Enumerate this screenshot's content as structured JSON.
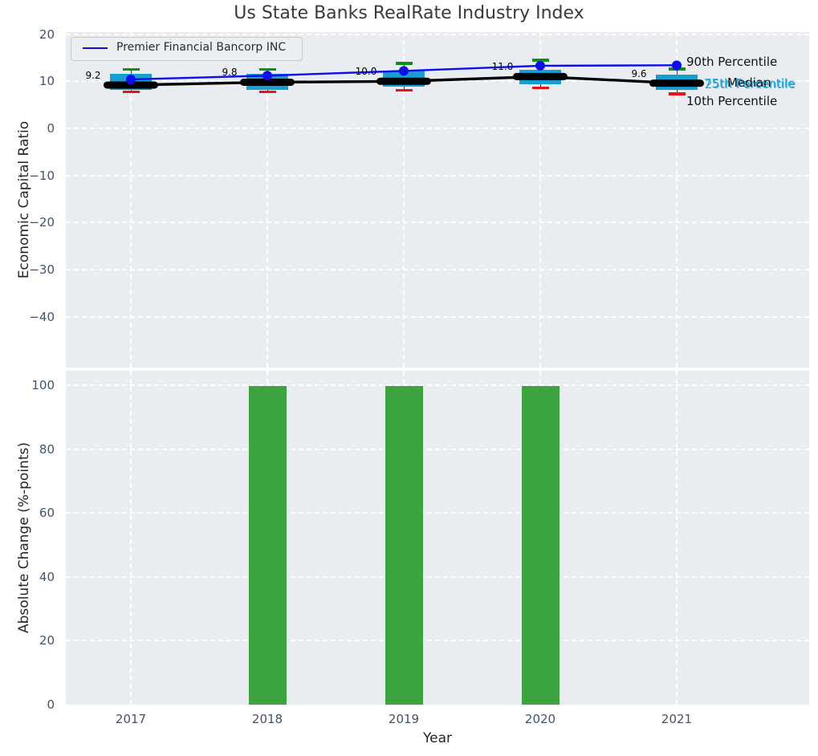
{
  "figure": {
    "title": "Us State Banks RealRate Industry Index"
  },
  "legend": {
    "series_label": "Premier Financial Bancorp INC"
  },
  "side_labels": {
    "p90": "90th Percentile",
    "p75": "75th Percentile",
    "median": "Median",
    "p25": "25th Percentile",
    "p10": "10th Percentile"
  },
  "colors": {
    "panel_bg": "#e9edf1",
    "grid": "#ffffff",
    "box_fill": "#179fd2",
    "percentile_label": "#2ba6d8",
    "p90_cap": "#0a960a",
    "p10_cap": "#ee1111",
    "company_line": "#0d0dee",
    "median_line": "#000000",
    "bar_fill": "#3ba43e",
    "tick_label": "#42536a",
    "title": "#3a3a3a"
  },
  "chart_data": [
    {
      "type": "boxplot+line",
      "panel": "top",
      "title": "Us State Banks RealRate Industry Index",
      "ylabel": "Economic Capital Ratio",
      "categories": [
        "2017",
        "2018",
        "2019",
        "2020",
        "2021"
      ],
      "yticks": [
        20,
        10,
        0,
        -10,
        -20,
        -30,
        -40
      ],
      "ylim": [
        -52,
        20.5
      ],
      "grid": true,
      "legend_position": "upper-left",
      "company_series": {
        "name": "Premier Financial Bancorp INC",
        "values": [
          10.4,
          11.2,
          12.2,
          13.3,
          13.4
        ]
      },
      "median": {
        "values": [
          9.2,
          9.8,
          10.0,
          11.0,
          9.6
        ],
        "annotations": [
          "9.2",
          "9.8",
          "10.0",
          "11.0",
          "9.6"
        ]
      },
      "p90": [
        12.5,
        12.5,
        13.8,
        14.5,
        12.6
      ],
      "p75": [
        11.5,
        11.6,
        12.2,
        12.5,
        11.4
      ],
      "p25": [
        8.1,
        8.1,
        8.8,
        9.4,
        8.2
      ],
      "p10": [
        7.8,
        7.8,
        8.1,
        8.6,
        7.3
      ]
    },
    {
      "type": "bar",
      "panel": "bottom",
      "xlabel": "Year",
      "ylabel": "Absolute Change (%-points)",
      "categories": [
        "2017",
        "2018",
        "2019",
        "2020",
        "2021"
      ],
      "values": [
        0,
        99.8,
        99.8,
        99.8,
        0
      ],
      "yticks": [
        100,
        80,
        60,
        40,
        20,
        0
      ],
      "ylim": [
        0,
        104.5
      ],
      "grid": true
    }
  ]
}
